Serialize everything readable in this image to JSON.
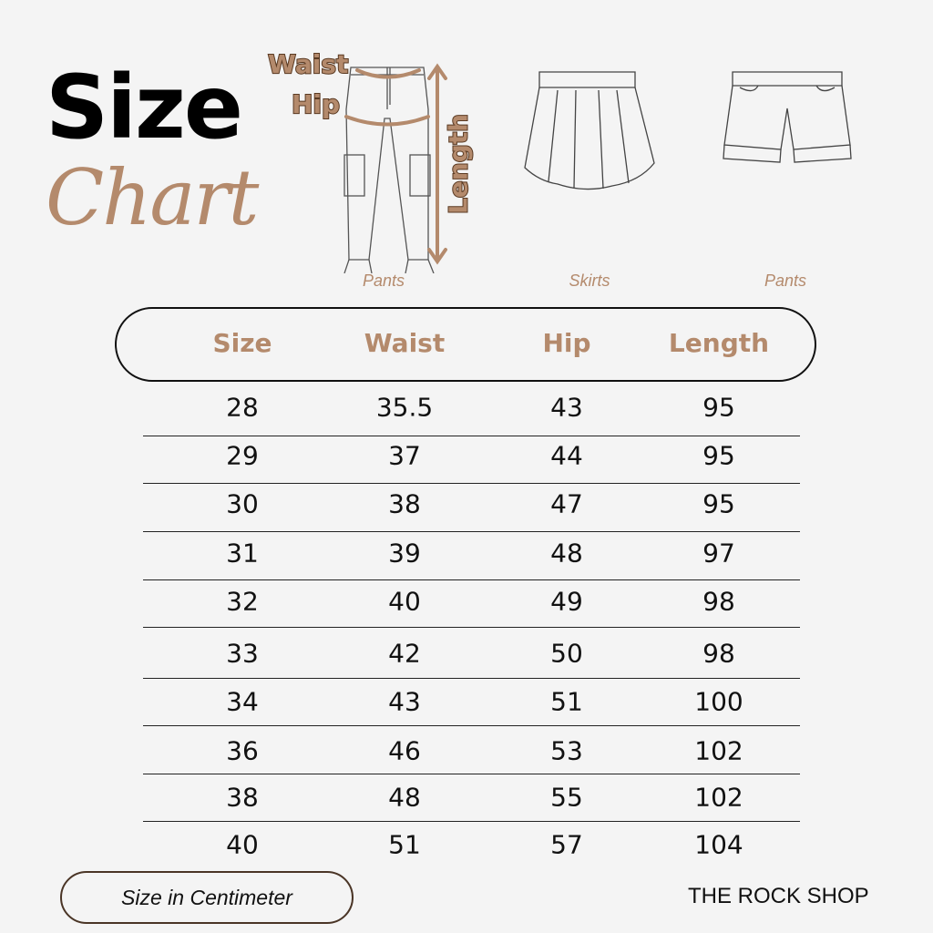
{
  "title": {
    "line1": "Size",
    "line2": "Chart"
  },
  "illustrations": {
    "labels": {
      "waist": "Waist",
      "hip": "Hip",
      "length": "Length"
    },
    "captions": [
      "Pants",
      "Skirts",
      "Pants"
    ]
  },
  "colors": {
    "accent": "#b48a6c",
    "outline": "#5a3a22",
    "background": "#f4f4f4"
  },
  "table": {
    "headers": [
      "Size",
      "Waist",
      "Hip",
      "Length"
    ],
    "rows": [
      [
        "28",
        "35.5",
        "43",
        "95"
      ],
      [
        "29",
        "37",
        "44",
        "95"
      ],
      [
        "30",
        "38",
        "47",
        "95"
      ],
      [
        "31",
        "39",
        "48",
        "97"
      ],
      [
        "32",
        "40",
        "49",
        "98"
      ],
      [
        "33",
        "42",
        "50",
        "98"
      ],
      [
        "34",
        "43",
        "51",
        "100"
      ],
      [
        "36",
        "46",
        "53",
        "102"
      ],
      [
        "38",
        "48",
        "55",
        "102"
      ],
      [
        "40",
        "51",
        "57",
        "104"
      ]
    ]
  },
  "footer": {
    "unit_note": "Size in Centimeter",
    "brand": "THE ROCK SHOP"
  }
}
